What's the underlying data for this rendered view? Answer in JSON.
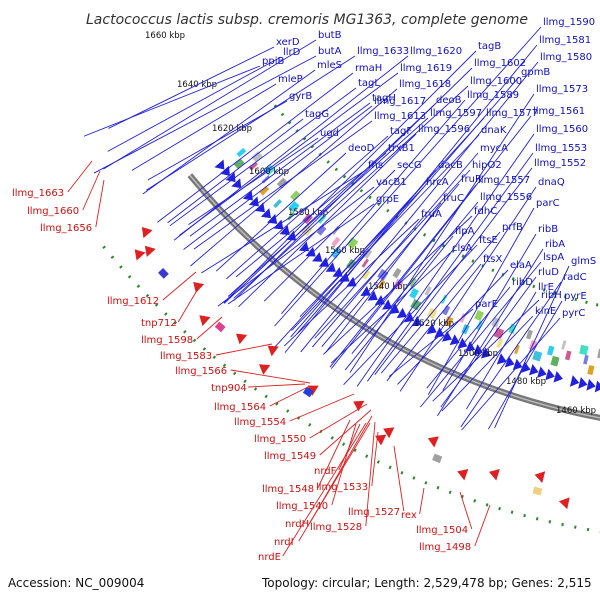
{
  "title": "Lactococcus lactis subsp. cremoris MG1363, complete genome",
  "footer": {
    "accession": "Accession: NC_009004",
    "summary": "Topology: circular; Length: 2,529,478 bp; Genes: 2,515"
  },
  "colors": {
    "forward_strand": "#2020e0",
    "reverse_strand": "#e02020",
    "backbone": "#777777",
    "dotted_ring": "#2a8a2a"
  },
  "scale_labels": [
    "1660 kbp",
    "1640 kbp",
    "1620 kbp",
    "1600 kbp",
    "1580 kbp",
    "1560 kbp",
    "1540 kbp",
    "1520 kbp",
    "1500 kbp",
    "1480 kbp",
    "1460 kbp"
  ],
  "forward_genes": [
    {
      "label": "xerD"
    },
    {
      "label": "llrD"
    },
    {
      "label": "butB"
    },
    {
      "label": "ppiB"
    },
    {
      "label": "butA"
    },
    {
      "label": "mleS"
    },
    {
      "label": "llmg_1633"
    },
    {
      "label": "llmg_1620"
    },
    {
      "label": "tagB"
    },
    {
      "label": "llmg_1590"
    },
    {
      "label": "mleP"
    },
    {
      "label": "rmaH"
    },
    {
      "label": "llmg_1619"
    },
    {
      "label": "llmg_1602"
    },
    {
      "label": "llmg_1581"
    },
    {
      "label": "gyrB"
    },
    {
      "label": "tagL"
    },
    {
      "label": "llmg_1618"
    },
    {
      "label": "gpmB"
    },
    {
      "label": "llmg_1580"
    },
    {
      "label": "tagG"
    },
    {
      "label": "tagH"
    },
    {
      "label": "llmg_1617"
    },
    {
      "label": "deoB"
    },
    {
      "label": "llmg_1600"
    },
    {
      "label": "llmg_1589"
    },
    {
      "label": "llmg_1573"
    },
    {
      "label": "llmg_1613"
    },
    {
      "label": "llmg_1597"
    },
    {
      "label": "llmg_1577"
    },
    {
      "label": "ugd"
    },
    {
      "label": "tagF"
    },
    {
      "label": "llmg_1596"
    },
    {
      "label": "dnaK"
    },
    {
      "label": "llmg_1561"
    },
    {
      "label": "deoD"
    },
    {
      "label": "trxB1"
    },
    {
      "label": "mycA"
    },
    {
      "label": "llmg_1560"
    },
    {
      "label": "fhs"
    },
    {
      "label": "secG"
    },
    {
      "label": "dacB"
    },
    {
      "label": "hipO2"
    },
    {
      "label": "llmg_1553"
    },
    {
      "label": "vacB1"
    },
    {
      "label": "hrcA"
    },
    {
      "label": "fruR"
    },
    {
      "label": "llmg_1557"
    },
    {
      "label": "llmg_1552"
    },
    {
      "label": "grpE"
    },
    {
      "label": "fruC"
    },
    {
      "label": "llmg_1556"
    },
    {
      "label": "dnaQ"
    },
    {
      "label": "fruA"
    },
    {
      "label": "fdhC"
    },
    {
      "label": "parC"
    },
    {
      "label": "flpA"
    },
    {
      "label": "prfB"
    },
    {
      "label": "clsA"
    },
    {
      "label": "ftsE"
    },
    {
      "label": "ribB"
    },
    {
      "label": "ftsX"
    },
    {
      "label": "ribA"
    },
    {
      "label": "elaA"
    },
    {
      "label": "lspA"
    },
    {
      "label": "glmS"
    },
    {
      "label": "ribD"
    },
    {
      "label": "rluD"
    },
    {
      "label": "radC"
    },
    {
      "label": "ribH"
    },
    {
      "label": "llrE"
    },
    {
      "label": "pyrE"
    },
    {
      "label": "parE"
    },
    {
      "label": "kinE"
    },
    {
      "label": "pyrC"
    }
  ],
  "reverse_genes": [
    {
      "label": "llmg_1663"
    },
    {
      "label": "llmg_1660"
    },
    {
      "label": "llmg_1656"
    },
    {
      "label": "llmg_1612"
    },
    {
      "label": "tnp712"
    },
    {
      "label": "llmg_1598"
    },
    {
      "label": "llmg_1583"
    },
    {
      "label": "llmg_1566"
    },
    {
      "label": "tnp904"
    },
    {
      "label": "llmg_1564"
    },
    {
      "label": "llmg_1554"
    },
    {
      "label": "llmg_1550"
    },
    {
      "label": "llmg_1549"
    },
    {
      "label": "nrdF"
    },
    {
      "label": "llmg_1548"
    },
    {
      "label": "llmg_1540"
    },
    {
      "label": "llmg_1533"
    },
    {
      "label": "nrdH"
    },
    {
      "label": "llmg_1528"
    },
    {
      "label": "llmg_1527"
    },
    {
      "label": "rex"
    },
    {
      "label": "nrdI"
    },
    {
      "label": "nrdE"
    },
    {
      "label": "llmg_1504"
    },
    {
      "label": "llmg_1498"
    }
  ]
}
